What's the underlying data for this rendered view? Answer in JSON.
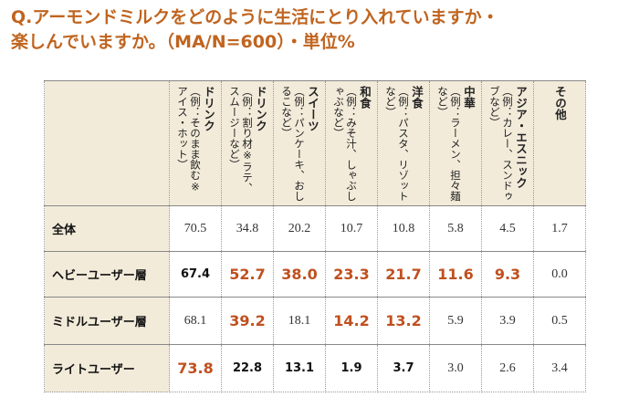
{
  "header": {
    "title_lines": [
      "Q.アーモンドミルクをどのように生活にとり入れていますか・",
      "楽しんでいますか。（MA/N=600）・単位%"
    ]
  },
  "table": {
    "columns": [
      {
        "label": "ドリンク",
        "note": "（例：そのまま飲む※アイス・ホット）"
      },
      {
        "label": "ドリンク",
        "note": "（例：割り材※ラテ、スムージーなど）"
      },
      {
        "label": "スイーツ",
        "note": "（例：パンケーキ、おしるこなど）"
      },
      {
        "label": "和食",
        "note": "（例：みそ汁、しゃぶしゃぶなど）"
      },
      {
        "label": "洋食",
        "note": "（例：パスタ、リゾットなど）"
      },
      {
        "label": "中華",
        "note": "（例：ラーメン、担々麺など）"
      },
      {
        "label": "アジア・エスニック",
        "note": "（例：カレー、スンドゥブなど）"
      },
      {
        "label": "その他"
      }
    ],
    "rows": [
      {
        "label": "全体",
        "cells": [
          {
            "text": "70.5",
            "style": "plain"
          },
          {
            "text": "34.8",
            "style": "plain"
          },
          {
            "text": "20.2",
            "style": "plain"
          },
          {
            "text": "10.7",
            "style": "plain"
          },
          {
            "text": "10.8",
            "style": "plain"
          },
          {
            "text": "5.8",
            "style": "plain"
          },
          {
            "text": "4.5",
            "style": "plain"
          },
          {
            "text": "1.7",
            "style": "plain"
          }
        ]
      },
      {
        "label": "ヘビーユーザー層",
        "cells": [
          {
            "text": "67.4",
            "style": "bold"
          },
          {
            "text": "52.7",
            "style": "orange-bold"
          },
          {
            "text": "38.0",
            "style": "orange-bold"
          },
          {
            "text": "23.3",
            "style": "orange-bold"
          },
          {
            "text": "21.7",
            "style": "orange-bold"
          },
          {
            "text": "11.6",
            "style": "orange-bold"
          },
          {
            "text": "9.3",
            "style": "orange-bold"
          },
          {
            "text": "0.0",
            "style": "plain"
          }
        ]
      },
      {
        "label": "ミドルユーザー層",
        "cells": [
          {
            "text": "68.1",
            "style": "plain"
          },
          {
            "text": "39.2",
            "style": "orange-bold"
          },
          {
            "text": "18.1",
            "style": "plain"
          },
          {
            "text": "14.2",
            "style": "orange-bold"
          },
          {
            "text": "13.2",
            "style": "orange-bold"
          },
          {
            "text": "5.9",
            "style": "plain"
          },
          {
            "text": "3.9",
            "style": "plain"
          },
          {
            "text": "0.5",
            "style": "plain"
          }
        ]
      },
      {
        "label": "ライトユーザー",
        "cells": [
          {
            "text": "73.8",
            "style": "orange-bold"
          },
          {
            "text": "22.8",
            "style": "bold"
          },
          {
            "text": "13.1",
            "style": "bold"
          },
          {
            "text": "1.9",
            "style": "bold"
          },
          {
            "text": "3.7",
            "style": "bold"
          },
          {
            "text": "3.0",
            "style": "plain"
          },
          {
            "text": "2.6",
            "style": "plain"
          },
          {
            "text": "3.4",
            "style": "plain"
          }
        ]
      }
    ]
  }
}
